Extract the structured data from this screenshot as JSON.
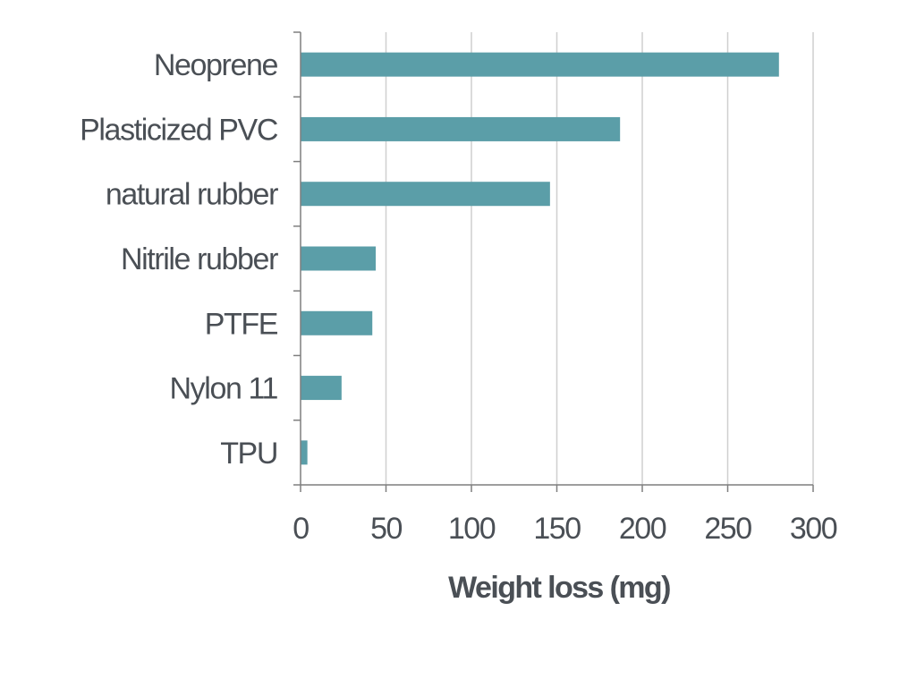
{
  "chart_data": {
    "type": "bar",
    "orientation": "horizontal",
    "categories": [
      "Neoprene",
      "Plasticized PVC",
      "natural rubber",
      "Nitrile rubber",
      "PTFE",
      "Nylon 11",
      "TPU"
    ],
    "values": [
      280,
      187,
      146,
      44,
      42,
      24,
      4
    ],
    "xlabel": "Weight loss  (mg)",
    "ylabel": "",
    "xlim": [
      0,
      300
    ],
    "xticks": [
      "0",
      "50",
      "100",
      "150",
      "200",
      "250",
      "300"
    ],
    "grid": "vertical",
    "bar_color": "#5b9ea8"
  }
}
